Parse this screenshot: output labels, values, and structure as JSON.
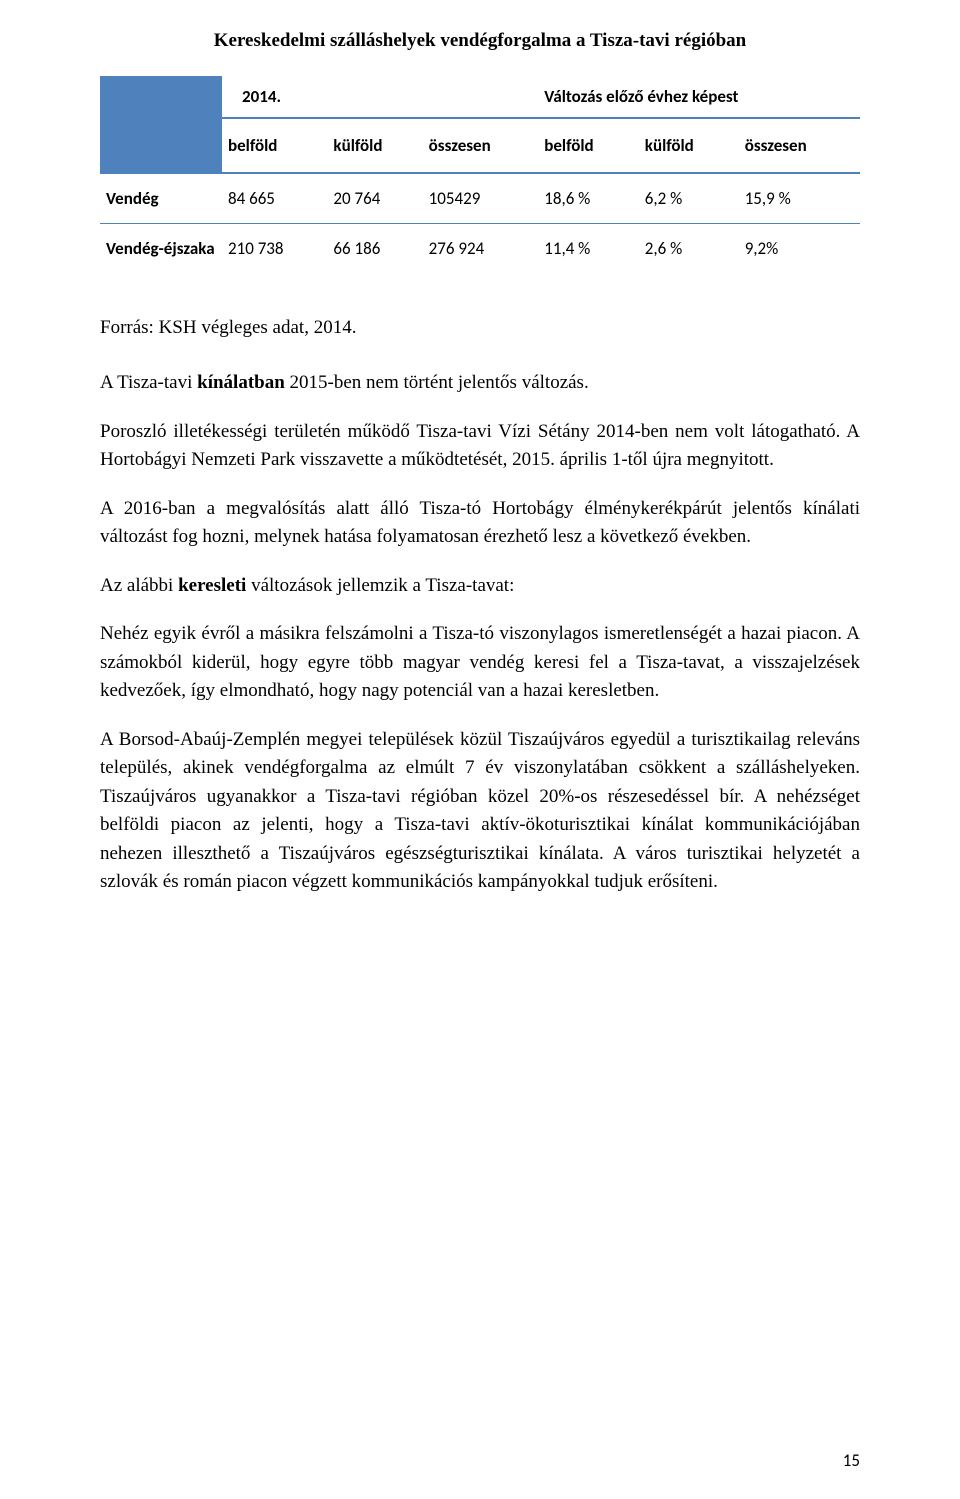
{
  "title": "Kereskedelmi szálláshelyek vendégforgalma a Tisza-tavi régióban",
  "table": {
    "header_corner_color": "#4f81bd",
    "border_color": "#4f81bd",
    "year_label": "2014.",
    "change_label": "Változás előző évhez képest",
    "sub_headers": [
      "belföld",
      "külföld",
      "összesen",
      "belföld",
      "külföld",
      "összesen"
    ],
    "rows": [
      {
        "label": "Vendég",
        "cells": [
          "84 665",
          "20 764",
          "105429",
          "18,6 %",
          "6,2 %",
          "15,9 %"
        ]
      },
      {
        "label": "Vendég-éjszaka",
        "cells": [
          "210 738",
          "66 186",
          "276 924",
          "11,4 %",
          "2,6 %",
          "9,2%"
        ]
      }
    ]
  },
  "source": "Forrás: KSH végleges adat, 2014.",
  "paragraphs": {
    "p1_a": "A Tisza-tavi ",
    "p1_b": "kínálatban",
    "p1_c": " 2015-ben nem történt jelentős változás.",
    "p2": "Poroszló illetékességi területén működő Tisza-tavi Vízi Sétány 2014-ben nem volt látogatható. A Hortobágyi Nemzeti Park visszavette a működtetését, 2015. április 1-től újra megnyitott.",
    "p3": "A 2016-ban a megvalósítás alatt álló Tisza-tó Hortobágy élménykerékpárút jelentős kínálati változást fog hozni, melynek hatása folyamatosan érezhető lesz a következő években.",
    "p4_a": "Az alábbi ",
    "p4_b": "keresleti",
    "p4_c": " változások jellemzik a Tisza-tavat:",
    "p5": "Nehéz egyik évről a másikra felszámolni a Tisza-tó viszonylagos ismeretlenségét a hazai piacon. A számokból kiderül, hogy egyre több magyar vendég keresi fel a Tisza-tavat, a visszajelzések kedvezőek, így elmondható, hogy nagy potenciál van a hazai keresletben.",
    "p6": "A Borsod-Abaúj-Zemplén megyei települések közül Tiszaújváros egyedül a turisztikailag releváns település, akinek vendégforgalma az elmúlt 7 év viszonylatában csökkent a szálláshelyeken. Tiszaújváros ugyanakkor a Tisza-tavi régióban közel 20%-os részesedéssel bír. A nehézséget belföldi piacon az jelenti, hogy a Tisza-tavi aktív-ökoturisztikai kínálat kommunikációjában nehezen illeszthető a Tiszaújváros egészségturisztikai kínálata. A város turisztikai helyzetét a szlovák és román piacon végzett kommunikációs kampányokkal tudjuk erősíteni."
  },
  "page_number": "15"
}
